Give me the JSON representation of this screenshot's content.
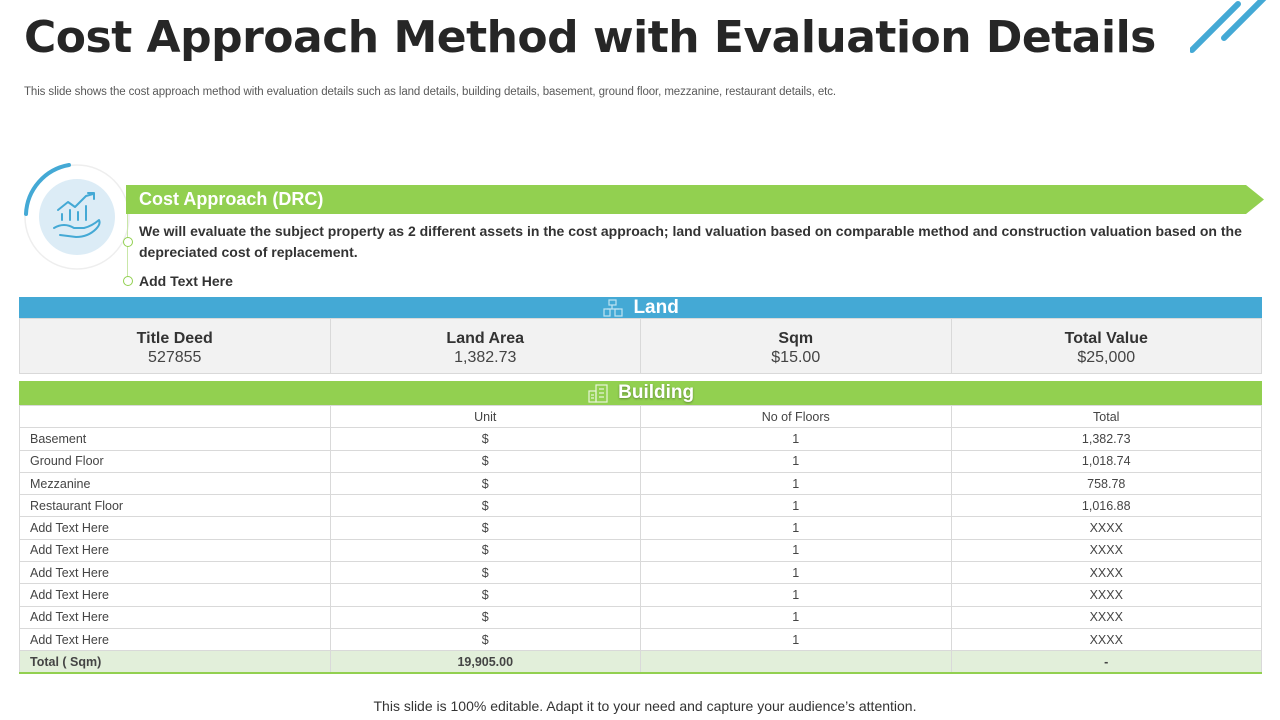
{
  "title": "Cost Approach Method with Evaluation Details",
  "subtitle": "This slide shows the cost approach method with evaluation details such as land details, building details, basement, ground floor, mezzanine, restaurant details, etc.",
  "banner": {
    "label": "Cost Approach (DRC)",
    "description": "We will evaluate the subject property as 2 different assets in the cost approach; land valuation based on comparable method and construction valuation based on the depreciated cost of replacement.",
    "add_text": "Add Text Here",
    "icon": "growth-chart-hand-icon"
  },
  "land": {
    "heading": "Land",
    "icon": "building-icon",
    "cells": [
      {
        "label": "Title Deed",
        "value": "527855"
      },
      {
        "label": "Land Area",
        "value": "1,382.73"
      },
      {
        "label": "Sqm",
        "value": "$15.00"
      },
      {
        "label": "Total Value",
        "value": "$25,000"
      }
    ]
  },
  "building": {
    "heading": "Building",
    "icon": "building-icon",
    "columns": [
      "",
      "Unit",
      "No of Floors",
      "Total"
    ],
    "rows": [
      [
        "Basement",
        "$",
        "1",
        "1,382.73"
      ],
      [
        "Ground Floor",
        "$",
        "1",
        "1,018.74"
      ],
      [
        "Mezzanine",
        "$",
        "1",
        "758.78"
      ],
      [
        "Restaurant Floor",
        "$",
        "1",
        "1,016.88"
      ],
      [
        "Add Text Here",
        "$",
        "1",
        "XXXX"
      ],
      [
        "Add Text Here",
        "$",
        "1",
        "XXXX"
      ],
      [
        "Add Text Here",
        "$",
        "1",
        "XXXX"
      ],
      [
        "Add Text Here",
        "$",
        "1",
        "XXXX"
      ],
      [
        "Add Text Here",
        "$",
        "1",
        "XXXX"
      ],
      [
        "Add Text Here",
        "$",
        "1",
        "XXXX"
      ]
    ],
    "total": [
      "Total ( Sqm)",
      "19,905.00",
      "",
      "-"
    ]
  },
  "footer": "This slide is 100% editable. Adapt it to your need and capture your audience’s attention.",
  "colors": {
    "green": "#92d050",
    "blue": "#44a9d5",
    "dark": "#262626"
  }
}
